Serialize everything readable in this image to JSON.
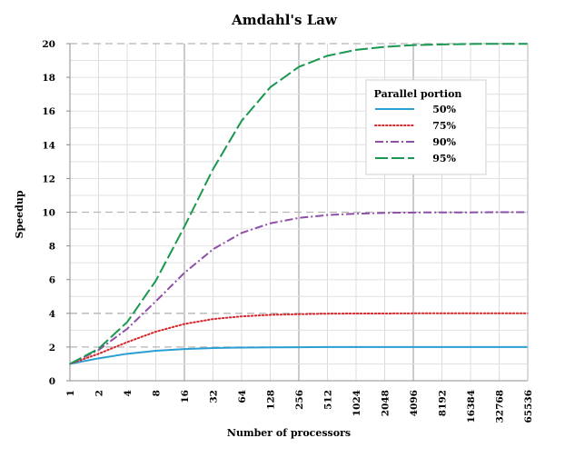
{
  "chart_data": {
    "type": "line",
    "title": "Amdahl's Law",
    "xlabel": "Number of processors",
    "ylabel": "Speedup",
    "x_scale": "log2",
    "x": [
      1,
      2,
      4,
      8,
      16,
      32,
      64,
      128,
      256,
      512,
      1024,
      2048,
      4096,
      8192,
      16384,
      32768,
      65536
    ],
    "x_tick_labels": [
      "1",
      "2",
      "4",
      "8",
      "16",
      "32",
      "64",
      "128",
      "256",
      "512",
      "1024",
      "2048",
      "4096",
      "8192",
      "16384",
      "32768",
      "65536"
    ],
    "ylim": [
      0,
      20
    ],
    "y_ticks": [
      0,
      2,
      4,
      6,
      8,
      10,
      12,
      14,
      16,
      18,
      20
    ],
    "grid": true,
    "legend": {
      "title": "Parallel portion",
      "position": "top-right"
    },
    "series": [
      {
        "name": "50%",
        "color": "#2b9fd3",
        "style": "solid",
        "values": [
          1,
          1.33,
          1.6,
          1.78,
          1.88,
          1.94,
          1.97,
          1.98,
          1.99,
          2.0,
          2.0,
          2.0,
          2.0,
          2.0,
          2.0,
          2.0,
          2.0
        ]
      },
      {
        "name": "75%",
        "color": "#d9262b",
        "style": "dotted",
        "values": [
          1,
          1.6,
          2.29,
          2.91,
          3.37,
          3.66,
          3.82,
          3.91,
          3.95,
          3.98,
          3.99,
          3.99,
          4.0,
          4.0,
          4.0,
          4.0,
          4.0
        ]
      },
      {
        "name": "90%",
        "color": "#8e4fa7",
        "style": "dashdot",
        "values": [
          1,
          1.82,
          3.08,
          4.71,
          6.4,
          7.8,
          8.77,
          9.34,
          9.66,
          9.83,
          9.91,
          9.96,
          9.98,
          9.99,
          9.99,
          10.0,
          10.0
        ]
      },
      {
        "name": "95%",
        "color": "#1a9850",
        "style": "longdash",
        "values": [
          1,
          1.9,
          3.48,
          5.93,
          9.14,
          12.55,
          15.42,
          17.41,
          18.62,
          19.28,
          19.63,
          19.81,
          19.91,
          19.95,
          19.98,
          19.99,
          19.99
        ]
      }
    ]
  }
}
